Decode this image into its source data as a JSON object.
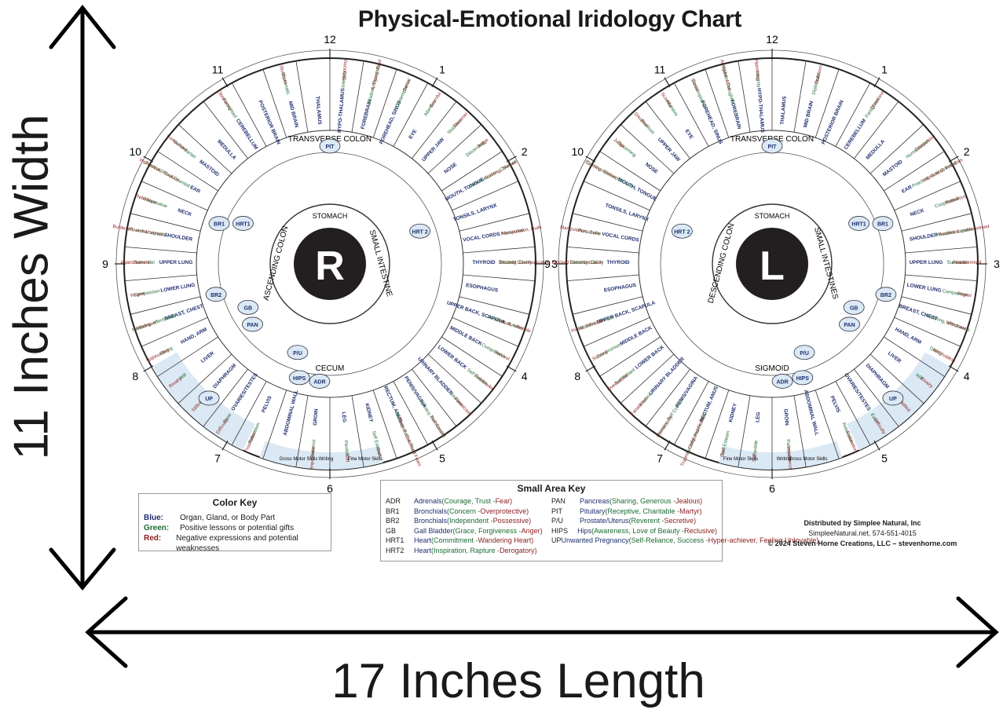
{
  "title": "Physical-Emotional Iridology Chart",
  "dimensions": {
    "height_label": "11 Inches Width",
    "width_label": "17 Inches Length"
  },
  "clock_numbers": [
    "12",
    "1",
    "2",
    "3",
    "4",
    "5",
    "6",
    "7",
    "8",
    "9",
    "10",
    "11"
  ],
  "right_iris": {
    "letter": "R",
    "inner_labels": [
      "TRANSVERSE COLON",
      "STOMACH",
      "SMALL INTESTINE",
      "CECUM",
      "ASCENDING COLON"
    ],
    "zones": [
      {
        "organ": "HYPO-THALAMUS",
        "green": "Integrity",
        "red": "Hypocrisy"
      },
      {
        "organ": "FOREBRAIN",
        "green": "Wisdom, Thoughtful",
        "red": "Arrogant, Aloof"
      },
      {
        "organ": "FOREHEAD, SINUS",
        "green": "Contemplative",
        "red": "Denial"
      },
      {
        "organ": "EYE",
        "green": "Attentive",
        "red": "Scornful"
      },
      {
        "organ": "UPPER JAW",
        "green": "Studious",
        "red": "Dreamer"
      },
      {
        "organ": "NOSE",
        "green": "Discerning",
        "red": "Judge"
      },
      {
        "organ": "MOUTH, TONGUE",
        "green": "Communication, Counsel",
        "red": "Cunning, Shrewd"
      },
      {
        "organ": "TONSILS, LARYNX",
        "green": "",
        "red": ""
      },
      {
        "organ": "VOCAL CORDS",
        "green": "Persuasive",
        "red": "Manipulation, Guile"
      },
      {
        "organ": "THYROID",
        "green": "Sincerity, Clarity",
        "red": "Blocked Communication"
      },
      {
        "organ": "ESOPHAGUS",
        "green": "",
        "red": ""
      },
      {
        "organ": "UPPER BACK, SCAPULA",
        "green": "Resilient, Survivor",
        "red": "Proud, Inflexible"
      },
      {
        "organ": "MIDDLE BACK",
        "green": "Compromise",
        "red": "Survival"
      },
      {
        "organ": "LOWER BACK",
        "green": "Self Reliant",
        "red": "Overloaded"
      },
      {
        "organ": "URINARY BLADDER",
        "green": "Intuition",
        "red": "Fanaticism"
      },
      {
        "organ": "PENIS/VAGINA",
        "green": "Intimacy, Self Control",
        "red": "Promiscuity"
      },
      {
        "organ": "RECTUM, ANUS",
        "green": "Security, Peace, Trust",
        "red": "Trauma, Childhood Fears"
      },
      {
        "organ": "KIDNEY",
        "green": "Self Esteem",
        "red": "Guilt"
      },
      {
        "organ": "LEG",
        "green": "Flexible",
        "red": "Stiff"
      },
      {
        "organ": "GROIN",
        "green": "Patience",
        "red": "Impatience"
      },
      {
        "organ": "ABDOMINAL WALL",
        "green": "",
        "red": ""
      },
      {
        "organ": "PELVIS",
        "green": "Relaxation",
        "red": "Frustration"
      },
      {
        "organ": "OVARIES/TESTES",
        "green": "Ease",
        "red": "Difficulty"
      },
      {
        "organ": "DIAPHRAGM",
        "green": "Free",
        "red": "Stifled"
      },
      {
        "organ": "LIVER",
        "green": "Will",
        "red": "Rivalry"
      },
      {
        "organ": "HAND, ARM",
        "green": "Giving",
        "red": "Withholding"
      },
      {
        "organ": "BREAST, CHEST",
        "green": "Nurturing, affectionate",
        "red": "Withdrawn"
      },
      {
        "organ": "LOWER LUNG",
        "green": "Compassion",
        "red": "Regret"
      },
      {
        "organ": "UPPER LUNG",
        "green": "Surrender",
        "red": "Abandonment"
      },
      {
        "organ": "SHOULDER",
        "green": "Powerful, capable",
        "red": "Burdened, overwhelmed"
      },
      {
        "organ": "NECK",
        "green": "Cooperative",
        "red": "Rebellious"
      },
      {
        "organ": "EAR",
        "green": "Practical, Goal Oriented",
        "red": "Impractical, Frivolous"
      },
      {
        "organ": "MASTOID",
        "green": "Humanitarian",
        "red": "Compulsive"
      },
      {
        "organ": "MEDULLA",
        "green": "",
        "red": ""
      },
      {
        "organ": "CEREBELLUM",
        "green": "Farsighted",
        "red": "Obsessive"
      },
      {
        "organ": "POSTERIOR BRAIN",
        "green": "",
        "red": ""
      },
      {
        "organ": "MID BRAIN",
        "green": "Diplomatic",
        "red": "Stubborn"
      },
      {
        "organ": "THALAMUS",
        "green": "",
        "red": ""
      }
    ]
  },
  "left_iris": {
    "letter": "L",
    "inner_labels": [
      "TRANSVERSE COLON",
      "STOMACH",
      "DESCENDING COLON",
      "SIGMOID",
      "SMALL INTESTINES"
    ]
  },
  "small_areas": [
    "PIT",
    "HRT 2",
    "HRT1",
    "BR1",
    "BR2",
    "GB",
    "PAN",
    "P/U",
    "HIPS",
    "ADR",
    "UP"
  ],
  "motor_labels": [
    "Gross Motor Skills",
    "Writing",
    "Fine Motor Skills"
  ],
  "color_key": {
    "title": "Color Key",
    "rows": [
      {
        "label": "Blue:",
        "text": "Organ, Gland, or Body Part"
      },
      {
        "label": "Green:",
        "text": "Positive lessons or potential gifts"
      },
      {
        "label": "Red:",
        "text": "Negative expressions and potential weaknesses"
      }
    ]
  },
  "small_area_key": {
    "title": "Small Area Key",
    "left": [
      {
        "abbr": "ADR",
        "name": "Adrenals",
        "pos": "Courage, Trust",
        "neg": "Fear"
      },
      {
        "abbr": "BR1",
        "name": "Bronchials",
        "pos": "Concern",
        "neg": "Overprotective"
      },
      {
        "abbr": "BR2",
        "name": "Bronchials",
        "pos": "Independent",
        "neg": "Possessive"
      },
      {
        "abbr": "GB",
        "name": "Gall Bladder",
        "pos": "Grace, Forgiveness",
        "neg": "Anger"
      },
      {
        "abbr": "HRT1",
        "name": "Heart",
        "pos": "Commitment",
        "neg": "Wandering Heart"
      },
      {
        "abbr": "HRT2",
        "name": "Heart",
        "pos": "Inspiration, Rapture",
        "neg": "Derogatory"
      }
    ],
    "right": [
      {
        "abbr": "PAN",
        "name": "Pancreas",
        "pos": "Sharing, Generous",
        "neg": "Jealous"
      },
      {
        "abbr": "PIT",
        "name": "Pituitary",
        "pos": "Receptive, Charitable",
        "neg": "Martyr"
      },
      {
        "abbr": "P/U",
        "name": "Prostate/Uterus",
        "pos": "Reverent",
        "neg": "Secretive"
      },
      {
        "abbr": "HIPS",
        "name": "Hips",
        "pos": "Awareness, Love of Beauty",
        "neg": "Reclusive"
      },
      {
        "abbr": "UP",
        "name": "Unwanted Pregnancy",
        "pos": "Self-Reliance, Success",
        "neg": "Hyper-achiever, Feeling Unlovable"
      }
    ]
  },
  "distributor": {
    "line1": "Distributed by Simplee Natural, Inc",
    "line2": "SimpleeNatural.net, 574-551-4015",
    "line3": "© 2024 Steven Horne Creations, LLC – stevenhorne.com"
  },
  "colors": {
    "organ": "#1f2f6e",
    "positive": "#1c6b33",
    "negative": "#8a1c1c",
    "highlight": "#dbe9f5"
  }
}
